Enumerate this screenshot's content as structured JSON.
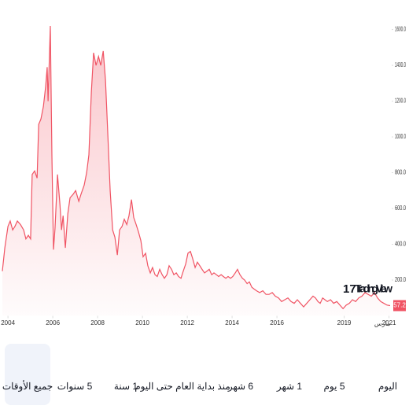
{
  "chart_data": {
    "type": "area",
    "color": "#f05464",
    "x": [
      2003.75,
      2003.86,
      2004.0,
      2004.1,
      2004.21,
      2004.31,
      2004.42,
      2004.56,
      2004.7,
      2004.8,
      2004.91,
      2005.01,
      2005.08,
      2005.19,
      2005.3,
      2005.37,
      2005.47,
      2005.58,
      2005.68,
      2005.75,
      2005.79,
      2005.89,
      2005.96,
      2006.03,
      2006.1,
      2006.21,
      2006.32,
      2006.39,
      2006.46,
      2006.56,
      2006.67,
      2006.77,
      2006.91,
      2007.02,
      2007.16,
      2007.26,
      2007.4,
      2007.51,
      2007.61,
      2007.72,
      2007.82,
      2007.93,
      2008.04,
      2008.14,
      2008.25,
      2008.35,
      2008.46,
      2008.56,
      2008.67,
      2008.77,
      2008.88,
      2008.98,
      2009.09,
      2009.19,
      2009.3,
      2009.4,
      2009.51,
      2009.61,
      2009.72,
      2009.82,
      2009.93,
      2010.03,
      2010.14,
      2010.24,
      2010.35,
      2010.45,
      2010.56,
      2010.66,
      2010.77,
      2010.88,
      2010.98,
      2011.09,
      2011.19,
      2011.3,
      2011.4,
      2011.51,
      2011.61,
      2011.72,
      2011.82,
      2011.93,
      2012.03,
      2012.14,
      2012.24,
      2012.35,
      2012.45,
      2012.56,
      2012.66,
      2012.77,
      2012.88,
      2012.98,
      2013.09,
      2013.19,
      2013.3,
      2013.4,
      2013.51,
      2013.61,
      2013.72,
      2013.82,
      2013.93,
      2014.03,
      2014.14,
      2014.24,
      2014.35,
      2014.46,
      2014.56,
      2014.67,
      2014.77,
      2014.88,
      2014.98,
      2015.09,
      2015.23,
      2015.37,
      2015.51,
      2015.65,
      2015.79,
      2015.93,
      2016.07,
      2016.21,
      2016.35,
      2016.49,
      2016.63,
      2016.77,
      2016.91,
      2017.05,
      2017.19,
      2017.33,
      2017.47,
      2017.61,
      2017.72,
      2017.83,
      2017.93,
      2018.04,
      2018.14,
      2018.25,
      2018.39,
      2018.53,
      2018.67,
      2018.81,
      2018.95,
      2019.09,
      2019.23,
      2019.37,
      2019.51,
      2019.65,
      2019.79,
      2019.93,
      2020.07,
      2020.21,
      2020.35,
      2020.49,
      2020.63,
      2020.77,
      2020.91,
      2021.05
    ],
    "values": [
      250,
      380,
      500,
      530,
      480,
      500,
      530,
      510,
      480,
      430,
      450,
      430,
      790,
      810,
      770,
      1070,
      1100,
      1170,
      1280,
      1390,
      1200,
      1620,
      900,
      370,
      490,
      790,
      620,
      480,
      560,
      380,
      570,
      660,
      680,
      700,
      640,
      680,
      730,
      800,
      900,
      1250,
      1470,
      1400,
      1450,
      1400,
      1480,
      1320,
      1000,
      700,
      480,
      440,
      340,
      480,
      500,
      540,
      510,
      560,
      650,
      550,
      510,
      470,
      420,
      330,
      350,
      280,
      240,
      270,
      230,
      220,
      260,
      230,
      210,
      230,
      280,
      260,
      230,
      240,
      220,
      210,
      250,
      290,
      350,
      360,
      320,
      270,
      300,
      280,
      260,
      240,
      250,
      260,
      230,
      240,
      230,
      220,
      230,
      220,
      210,
      220,
      210,
      220,
      240,
      260,
      230,
      210,
      200,
      180,
      190,
      160,
      150,
      140,
      130,
      140,
      120,
      120,
      130,
      110,
      100,
      80,
      90,
      100,
      80,
      70,
      90,
      70,
      50,
      70,
      90,
      110,
      100,
      80,
      70,
      100,
      90,
      80,
      90,
      70,
      80,
      60,
      40,
      60,
      70,
      90,
      80,
      100,
      110,
      130,
      120,
      110,
      130,
      100,
      80,
      70,
      60,
      57.2
    ],
    "xlim": [
      2003.75,
      2021.05
    ],
    "xticks": [
      2004,
      2006,
      2008,
      2010,
      2012,
      2014,
      2016,
      2019,
      2021
    ],
    "ylim": [
      0,
      1640
    ],
    "yticks": [
      {
        "value": 200,
        "label": "200.0"
      },
      {
        "value": 400,
        "label": "400.0"
      },
      {
        "value": 600,
        "label": "600.0"
      },
      {
        "value": 800,
        "label": "800.0"
      },
      {
        "value": 1000,
        "label": "1000.0"
      },
      {
        "value": 1200,
        "label": "1200.0"
      },
      {
        "value": 1400,
        "label": "1400.0"
      },
      {
        "value": 1600,
        "label": "1600.0"
      }
    ],
    "axis_note": "مارس",
    "watermark": "TradingView"
  },
  "toolbar": {
    "buttons": [
      "اليوم",
      "5 يوم",
      "1 شهر",
      "6 شهر",
      "منذ بداية العام حتى اليوم",
      "1 سنة",
      "5 سنوات",
      "جميع الأوقات"
    ],
    "selected": 7
  }
}
